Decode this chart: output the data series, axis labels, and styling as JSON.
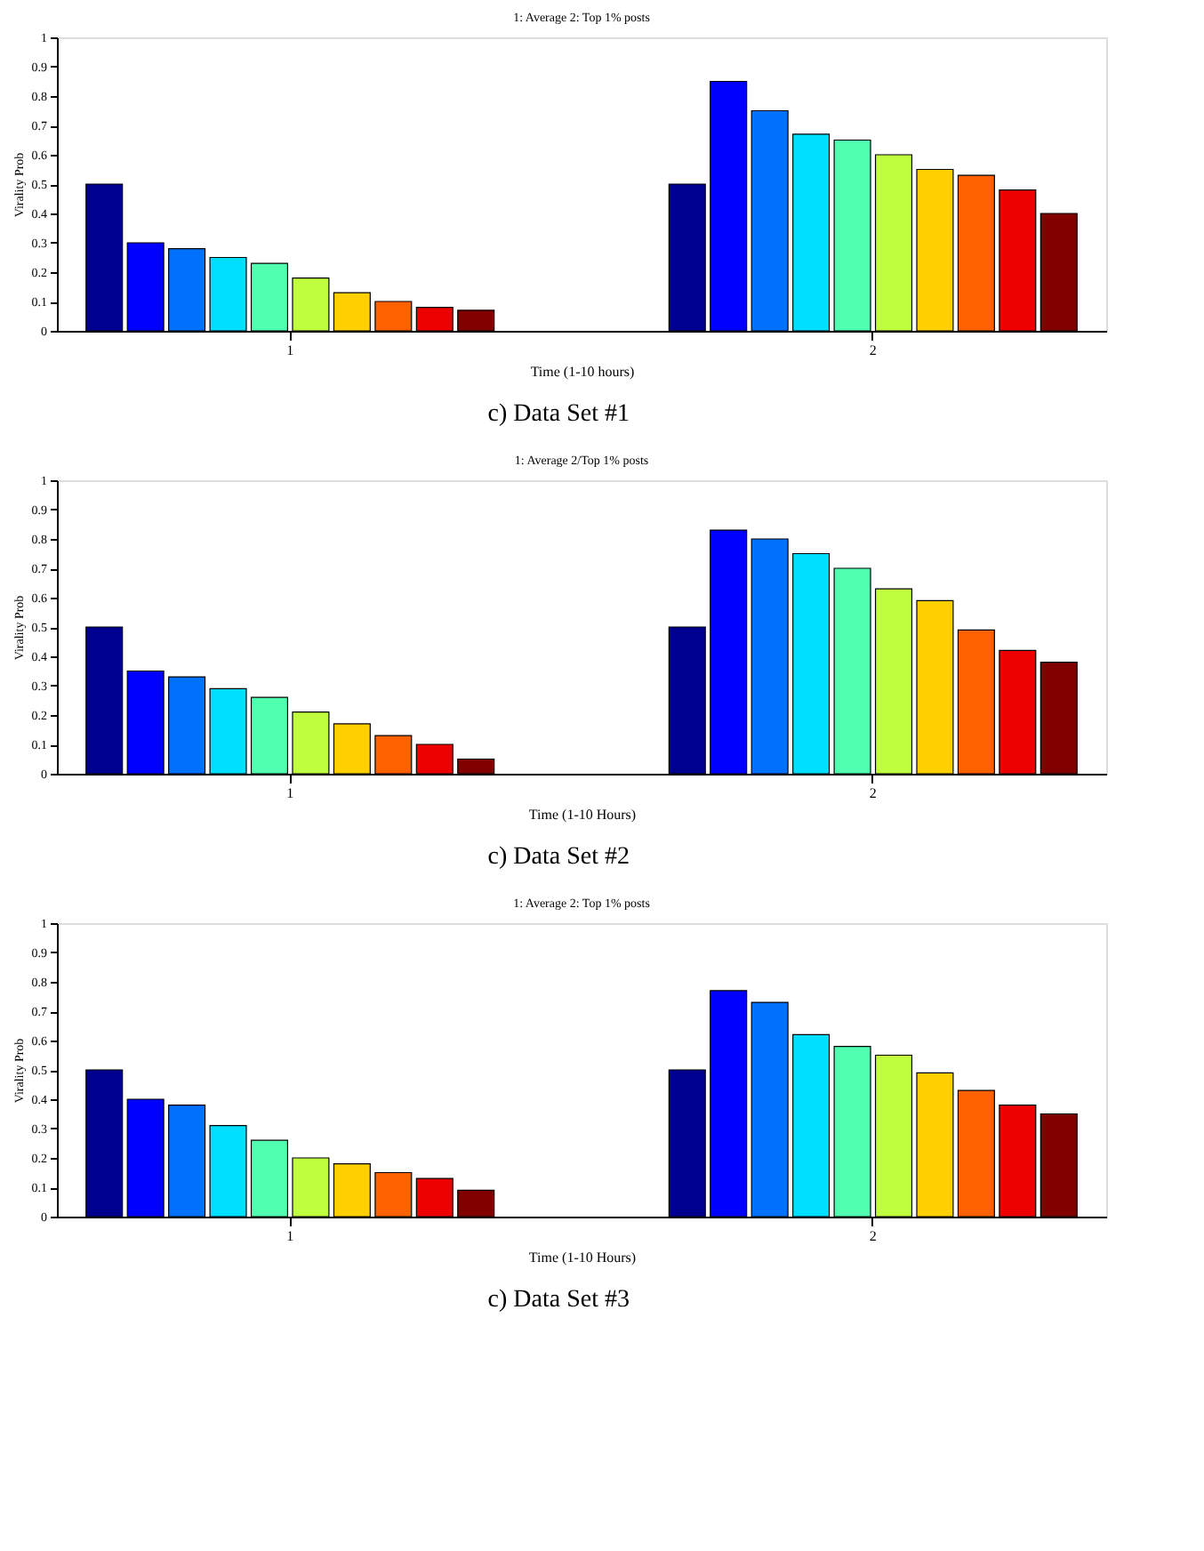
{
  "chart_data": [
    {
      "type": "bar",
      "title": "1: Average          2: Top 1% posts",
      "xlabel": "Time (1-10 hours)",
      "ylabel": "Virality Prob",
      "annotations": [
        "c) Data Set #1"
      ],
      "categories": [
        "1",
        "2"
      ],
      "ylim": [
        0,
        1
      ],
      "yticks": [
        0,
        0.1,
        0.2,
        0.3,
        0.4,
        0.5,
        0.6,
        0.7,
        0.8,
        0.9,
        1
      ],
      "grid": false,
      "legend": false,
      "series": [
        {
          "color": "#00008f",
          "values": [
            0.5,
            0.5
          ]
        },
        {
          "color": "#0000ff",
          "values": [
            0.3,
            0.85
          ]
        },
        {
          "color": "#0070ff",
          "values": [
            0.28,
            0.75
          ]
        },
        {
          "color": "#00dfff",
          "values": [
            0.25,
            0.67
          ]
        },
        {
          "color": "#50ffaf",
          "values": [
            0.23,
            0.65
          ]
        },
        {
          "color": "#bfff40",
          "values": [
            0.18,
            0.6
          ]
        },
        {
          "color": "#ffcf00",
          "values": [
            0.13,
            0.55
          ]
        },
        {
          "color": "#ff6000",
          "values": [
            0.1,
            0.53
          ]
        },
        {
          "color": "#ef0000",
          "values": [
            0.08,
            0.48
          ]
        },
        {
          "color": "#800000",
          "values": [
            0.07,
            0.4
          ]
        }
      ]
    },
    {
      "type": "bar",
      "title": "1: Average 2/Top 1% posts",
      "xlabel": "Time (1-10 Hours)",
      "ylabel": "Virality Prob",
      "annotations": [
        "c) Data Set #2"
      ],
      "categories": [
        "1",
        "2"
      ],
      "ylim": [
        0,
        1
      ],
      "yticks": [
        0,
        0.1,
        0.2,
        0.3,
        0.4,
        0.5,
        0.6,
        0.7,
        0.8,
        0.9,
        1
      ],
      "grid": false,
      "legend": false,
      "series": [
        {
          "color": "#00008f",
          "values": [
            0.5,
            0.5
          ]
        },
        {
          "color": "#0000ff",
          "values": [
            0.35,
            0.83
          ]
        },
        {
          "color": "#0070ff",
          "values": [
            0.33,
            0.8
          ]
        },
        {
          "color": "#00dfff",
          "values": [
            0.29,
            0.75
          ]
        },
        {
          "color": "#50ffaf",
          "values": [
            0.26,
            0.7
          ]
        },
        {
          "color": "#bfff40",
          "values": [
            0.21,
            0.63
          ]
        },
        {
          "color": "#ffcf00",
          "values": [
            0.17,
            0.59
          ]
        },
        {
          "color": "#ff6000",
          "values": [
            0.13,
            0.49
          ]
        },
        {
          "color": "#ef0000",
          "values": [
            0.1,
            0.42
          ]
        },
        {
          "color": "#800000",
          "values": [
            0.05,
            0.38
          ]
        }
      ]
    },
    {
      "type": "bar",
      "title": "1: Average  2: Top 1% posts",
      "xlabel": "Time (1-10 Hours)",
      "ylabel": "Virality Prob",
      "annotations": [
        "c) Data Set #3"
      ],
      "categories": [
        "1",
        "2"
      ],
      "ylim": [
        0,
        1
      ],
      "yticks": [
        0,
        0.1,
        0.2,
        0.3,
        0.4,
        0.5,
        0.6,
        0.7,
        0.8,
        0.9,
        1
      ],
      "grid": false,
      "legend": false,
      "series": [
        {
          "color": "#00008f",
          "values": [
            0.5,
            0.5
          ]
        },
        {
          "color": "#0000ff",
          "values": [
            0.4,
            0.77
          ]
        },
        {
          "color": "#0070ff",
          "values": [
            0.38,
            0.73
          ]
        },
        {
          "color": "#00dfff",
          "values": [
            0.31,
            0.62
          ]
        },
        {
          "color": "#50ffaf",
          "values": [
            0.26,
            0.58
          ]
        },
        {
          "color": "#bfff40",
          "values": [
            0.2,
            0.55
          ]
        },
        {
          "color": "#ffcf00",
          "values": [
            0.18,
            0.49
          ]
        },
        {
          "color": "#ff6000",
          "values": [
            0.15,
            0.43
          ]
        },
        {
          "color": "#ef0000",
          "values": [
            0.13,
            0.38
          ]
        },
        {
          "color": "#800000",
          "values": [
            0.09,
            0.35
          ]
        }
      ]
    }
  ]
}
